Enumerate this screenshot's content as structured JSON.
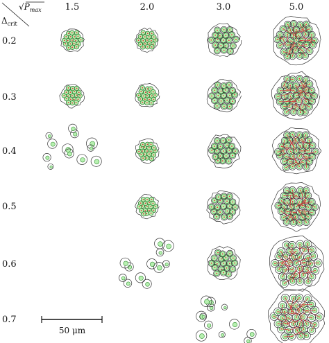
{
  "header": {
    "row_axis_label": "Δ",
    "row_axis_subscript": "crit",
    "col_axis_label_prefix": "√",
    "col_axis_label": "P",
    "col_axis_subscript": "max"
  },
  "columns": [
    "1.5",
    "2.0",
    "3.0",
    "5.0"
  ],
  "rows": [
    "0.2",
    "0.3",
    "0.4",
    "0.5",
    "0.6",
    "0.7"
  ],
  "scale_bar": {
    "label": "50 μm"
  },
  "panels": [
    [
      "cluster-tight",
      "cluster-tight",
      "cluster-medium",
      "cluster-large"
    ],
    [
      "cluster-tight",
      "cluster-tight",
      "cluster-medium",
      "cluster-large"
    ],
    [
      "scattered",
      "cluster-tight",
      "cluster-medium",
      "cluster-large"
    ],
    [
      "empty",
      "cluster-tight",
      "cluster-medium",
      "cluster-large"
    ],
    [
      "empty",
      "scattered",
      "cluster-medium",
      "cluster-large"
    ],
    [
      "empty",
      "empty",
      "scattered",
      "cluster-large"
    ]
  ],
  "colors": {
    "nucleus_fill": "#b7f0b0",
    "nucleus_stroke": "#2e8b2e",
    "boundary": "#333333",
    "voronoi": "#d43a3a",
    "centroid": "#e23b3b"
  }
}
